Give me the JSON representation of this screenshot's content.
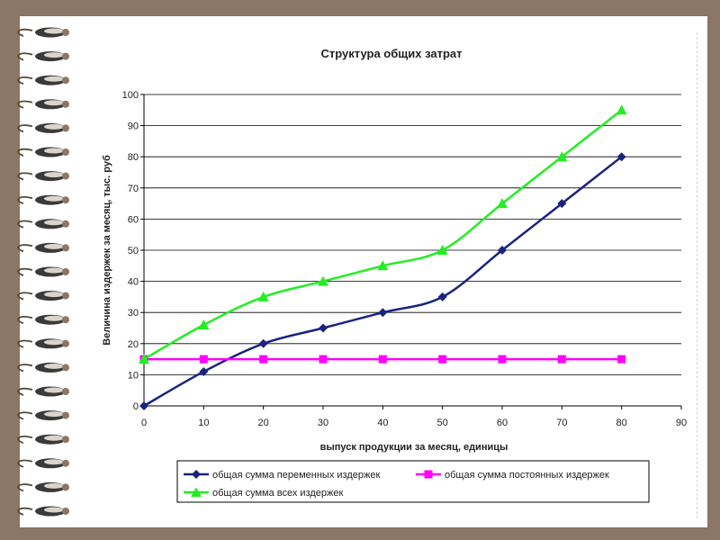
{
  "chart_data": {
    "type": "line",
    "title": "Структура общих затрат",
    "xlabel": "выпуск продукции за месяц, единицы",
    "ylabel": "Величина издержек за месяц, тыс. руб",
    "xlim": [
      0,
      90
    ],
    "ylim": [
      0,
      100
    ],
    "x_ticks": [
      0,
      10,
      20,
      30,
      40,
      50,
      60,
      70,
      80,
      90
    ],
    "y_ticks": [
      0,
      10,
      20,
      30,
      40,
      50,
      60,
      70,
      80,
      90,
      100
    ],
    "grid": "horizontal",
    "legend_position": "bottom",
    "x": [
      0,
      10,
      20,
      30,
      40,
      50,
      60,
      70,
      80
    ],
    "series": [
      {
        "name": "общая сумма переменных издержек",
        "color": "#1a237e",
        "marker": "diamond",
        "values": [
          0,
          11,
          20,
          25,
          30,
          35,
          50,
          65,
          80
        ]
      },
      {
        "name": "общая сумма постоянных издержек",
        "color": "#ff00ff",
        "marker": "square",
        "values": [
          15,
          15,
          15,
          15,
          15,
          15,
          15,
          15,
          15
        ]
      },
      {
        "name": "общая сумма всех издержек",
        "color": "#22ee22",
        "marker": "triangle",
        "values": [
          15,
          26,
          35,
          40,
          45,
          50,
          65,
          80,
          95
        ]
      }
    ]
  }
}
